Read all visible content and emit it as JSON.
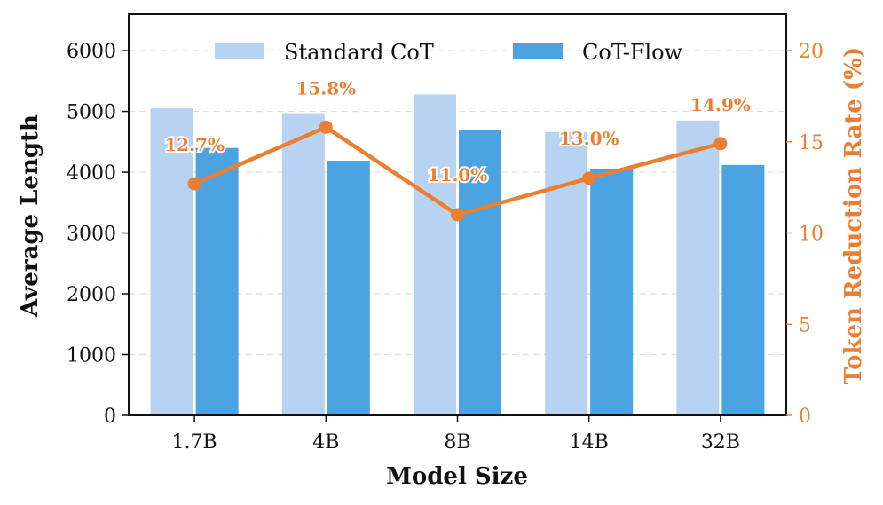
{
  "chart_data": {
    "type": "bar",
    "categories": [
      "1.7B",
      "4B",
      "8B",
      "14B",
      "32B"
    ],
    "series": [
      {
        "name": "Standard CoT",
        "values": [
          5050,
          4970,
          5280,
          4660,
          4850
        ],
        "color": "#B7D3F1"
      },
      {
        "name": "CoT-Flow",
        "values": [
          4400,
          4190,
          4700,
          4060,
          4120
        ],
        "color": "#4BA3E2"
      }
    ],
    "line_series": {
      "name": "Token Reduction Rate",
      "values": [
        12.7,
        15.8,
        11.0,
        13.0,
        14.9
      ],
      "labels": [
        "12.7%",
        "15.8%",
        "11.0%",
        "13.0%",
        "14.9%"
      ],
      "color": "#ED7D31"
    },
    "xlabel": "Model Size",
    "ylabel": "Average Length",
    "y2label": "Token Reduction Rate (%)",
    "ylim": [
      0,
      6600
    ],
    "y2lim": [
      0,
      22
    ],
    "yticks": [
      0,
      1000,
      2000,
      3000,
      4000,
      5000,
      6000
    ],
    "y2ticks": [
      0,
      5,
      10,
      15,
      20
    ],
    "grid": true,
    "legend": "top-center"
  }
}
